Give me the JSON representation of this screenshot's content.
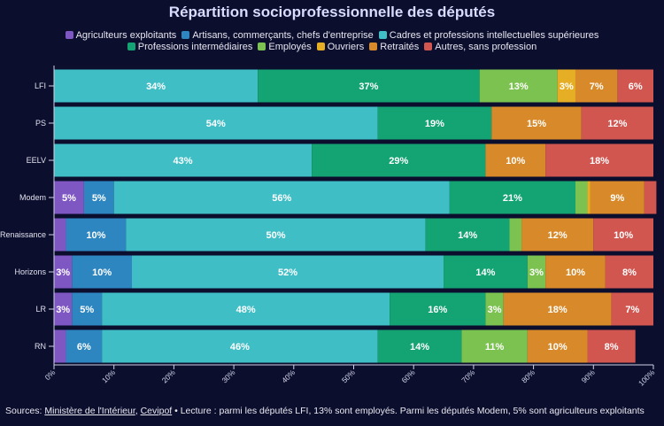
{
  "chart_data": {
    "type": "bar",
    "orientation": "horizontal",
    "stacked": true,
    "title": "Répartition socioprofessionnelle des députés",
    "categories": [
      "LFI",
      "PS",
      "EELV",
      "Modem",
      "Renaissance",
      "Horizons",
      "LR",
      "RN"
    ],
    "xlim": [
      0,
      100
    ],
    "xticks": [
      "0%",
      "10%",
      "20%",
      "30%",
      "40%",
      "50%",
      "60%",
      "70%",
      "80%",
      "90%",
      "100%"
    ],
    "legend_position": "top",
    "series": [
      {
        "name": "Agriculteurs exploitants",
        "color": "#7e57c2",
        "values": [
          0,
          0,
          0,
          5,
          2,
          3,
          3,
          2
        ],
        "labels": [
          "",
          "",
          "",
          "5%",
          "",
          "3%",
          "3%",
          ""
        ]
      },
      {
        "name": "Artisans, commerçants, chefs d'entreprise",
        "color": "#2e86c1",
        "values": [
          0,
          0,
          0,
          5,
          10,
          10,
          5,
          6
        ],
        "labels": [
          "",
          "",
          "",
          "5%",
          "10%",
          "10%",
          "5%",
          "6%"
        ]
      },
      {
        "name": "Cadres et professions intellectuelles supérieures",
        "color": "#40bec6",
        "values": [
          34,
          54,
          43,
          56,
          50,
          52,
          48,
          46
        ],
        "labels": [
          "34%",
          "54%",
          "43%",
          "56%",
          "50%",
          "52%",
          "48%",
          "46%"
        ]
      },
      {
        "name": "Professions intermédiaires",
        "color": "#14a373",
        "values": [
          37,
          19,
          29,
          21,
          14,
          14,
          16,
          14
        ],
        "labels": [
          "37%",
          "19%",
          "29%",
          "21%",
          "14%",
          "14%",
          "16%",
          "14%"
        ]
      },
      {
        "name": "Employés",
        "color": "#7cc251",
        "values": [
          13,
          0,
          0,
          2,
          2,
          3,
          3,
          11
        ],
        "labels": [
          "13%",
          "",
          "",
          "",
          "",
          "3%",
          "3%",
          "11%"
        ]
      },
      {
        "name": "Ouvriers",
        "color": "#e6ae24",
        "values": [
          3,
          0,
          0,
          0.5,
          0,
          0,
          0,
          0
        ],
        "labels": [
          "3%",
          "",
          "",
          "",
          "",
          "",
          "",
          ""
        ]
      },
      {
        "name": "Retraités",
        "color": "#d88a2a",
        "values": [
          7,
          15,
          10,
          9,
          12,
          10,
          18,
          10
        ],
        "labels": [
          "7%",
          "15%",
          "10%",
          "9%",
          "12%",
          "10%",
          "18%",
          "10%"
        ]
      },
      {
        "name": "Autres, sans profession",
        "color": "#d25650",
        "values": [
          6,
          12,
          18,
          2,
          10,
          8,
          7,
          8
        ],
        "labels": [
          "6%",
          "12%",
          "18%",
          "",
          "10%",
          "8%",
          "7%",
          "8%"
        ]
      }
    ]
  },
  "footer": {
    "prefix": "Sources: ",
    "source1": "Ministère de l'Intérieur",
    "separator": ", ",
    "source2": "Cevipof",
    "note": " • Lecture : parmi les députés LFI, 13% sont employés. Parmi les députés Modem, 5% sont agriculteurs exploitants"
  }
}
